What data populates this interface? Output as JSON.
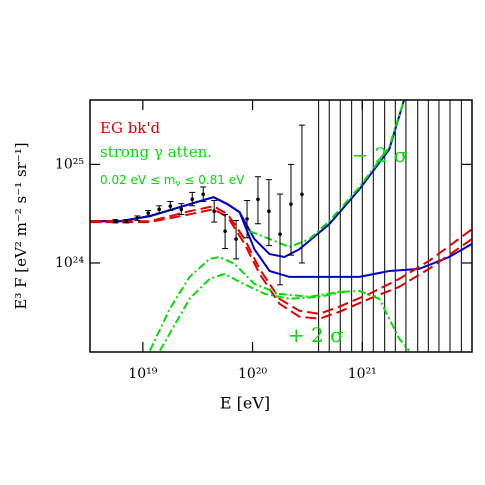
{
  "chart_data": {
    "type": "line",
    "xscale": "log",
    "yscale": "log",
    "xlabel": "E  [eV]",
    "ylabel": "E³ F  [eV² m⁻² s⁻¹ sr⁻¹]",
    "xlim": [
      3.3e+18,
      1e+22
    ],
    "ylim": [
      1.25e+23,
      4.5e+25
    ],
    "xticks": [
      {
        "value": 1e+19,
        "label": "10¹⁹"
      },
      {
        "value": 1e+20,
        "label": "10²⁰"
      },
      {
        "value": 1e+21,
        "label": "10²¹"
      }
    ],
    "yticks": [
      {
        "value": 1e+24,
        "label": "10²⁴"
      },
      {
        "value": 1e+25,
        "label": "10²⁵"
      }
    ],
    "legend": [
      {
        "text": "EG bk'd",
        "color": "#e00000"
      },
      {
        "text": "strong γ atten.",
        "color": "#00dd00"
      }
    ],
    "legend_note": {
      "parts": [
        "0.02 eV ≤ m",
        "ν",
        " ≤ 0.81 eV"
      ],
      "color": "#00dd00"
    },
    "annotations": [
      {
        "text": "− 2 σ",
        "color": "#00dd00",
        "x": 8e+20,
        "y": 1.2e+25
      },
      {
        "text": "+ 2 σ",
        "color": "#00dd00",
        "x": 2.1e+20,
        "y": 1.8e+23
      }
    ],
    "points": {
      "color": "#000000",
      "x": [
        5.62e+18,
        7.08e+18,
        8.91e+18,
        1.12e+19,
        1.41e+19,
        1.78e+19,
        2.24e+19,
        2.82e+19,
        3.55e+19,
        4.47e+19,
        5.62e+19,
        7.08e+19,
        8.91e+19,
        1.12e+20,
        1.41e+20,
        1.78e+20,
        2.24e+20,
        2.82e+20
      ],
      "values": [
        2.65e+24,
        2.65e+24,
        2.85e+24,
        3.2e+24,
        3.5e+24,
        3.77e+24,
        3.5e+24,
        4.43e+24,
        4.98e+24,
        3.35e+24,
        2.1e+24,
        1.75e+24,
        2.8e+24,
        4.43e+24,
        3.35e+24,
        1.96e+24,
        3.95e+24,
        4.98e+24
      ],
      "lower": [
        2.55e+24,
        2.55e+24,
        2.7e+24,
        3e+24,
        3.2e+24,
        3.4e+24,
        3.1e+24,
        3.8e+24,
        4.2e+24,
        2.6e+24,
        1.4e+24,
        1.1e+24,
        1.8e+24,
        2.5e+24,
        1.5e+24,
        6e+23,
        1.2e+24,
        1e+24
      ],
      "upper": [
        2.75e+24,
        2.75e+24,
        3e+24,
        3.4e+24,
        3.8e+24,
        4.2e+24,
        4e+24,
        5.2e+24,
        5.9e+24,
        4.3e+24,
        3.1e+24,
        2.7e+24,
        4.3e+24,
        7.5e+24,
        7e+24,
        5e+24,
        1e+25,
        2.5e+25
      ]
    },
    "upper_limit_x": [
      4e+20,
      5e+20,
      6.3e+20,
      8e+20,
      1e+21,
      1.26e+21,
      1.6e+21,
      2e+21,
      2.5e+21,
      3.2e+21,
      4e+21,
      5e+21,
      6.3e+21,
      8e+21
    ],
    "curves": [
      {
        "color": "#0000cc",
        "dash": "solid",
        "x": [
          3.3e+18,
          6.18e+18,
          1.16e+19,
          2.17e+19,
          3.3e+19,
          4.42e+19,
          5.93e+19,
          7.62e+19,
          1.04e+20,
          1.43e+20,
          1.95e+20,
          2.67e+20,
          5.01e+20,
          9.4e+20,
          1.76e+21,
          2.41e+21
        ],
        "values": [
          2.65e+24,
          2.65e+24,
          2.99e+24,
          3.68e+24,
          4.23e+24,
          4.65e+24,
          3.94e+24,
          3.27e+24,
          1.75e+24,
          1.23e+24,
          1.15e+24,
          1.38e+24,
          2.48e+24,
          5.58e+24,
          1.42e+25,
          4.54e+25
        ]
      },
      {
        "color": "#0000cc",
        "dash": "solid",
        "x": [
          3.3e+18,
          6.18e+18,
          1.16e+19,
          2.17e+19,
          3.3e+19,
          4.42e+19,
          5.93e+19,
          7.62e+19,
          1.04e+20,
          1.43e+20,
          2.17e+20,
          4.06e+20,
          9.4e+20,
          1.76e+21,
          3.3e+21,
          6.18e+21,
          1e+22
        ],
        "values": [
          2.65e+24,
          2.65e+24,
          2.99e+24,
          3.68e+24,
          4.23e+24,
          4.65e+24,
          3.94e+24,
          3.27e+24,
          1.38e+24,
          8.3e+23,
          7.23e+23,
          7.23e+23,
          7.23e+23,
          8.3e+23,
          8.7e+23,
          1.15e+24,
          1.56e+24
        ]
      },
      {
        "color": "#e00000",
        "dash": "dashed",
        "x": [
          3.3e+18,
          1.16e+19,
          2.67e+19,
          4.42e+19,
          5.93e+19,
          8.46e+19,
          1.16e+20,
          1.76e+20,
          2.67e+20,
          4.06e+20,
          6.18e+20,
          1.16e+21,
          2.17e+21,
          4.06e+21,
          1e+22
        ],
        "values": [
          2.65e+24,
          2.65e+24,
          3.35e+24,
          3.77e+24,
          3.12e+24,
          1.75e+24,
          8.7e+23,
          4.33e+23,
          3.27e+23,
          3.05e+23,
          3.6e+23,
          4.86e+23,
          6.89e+23,
          1.05e+24,
          2.2e+24
        ]
      },
      {
        "color": "#e00000",
        "dash": "dashed",
        "x": [
          3.3e+18,
          1.16e+19,
          2.67e+19,
          4.42e+19,
          5.93e+19,
          8.46e+19,
          1.16e+20,
          1.76e+20,
          2.67e+20,
          4.06e+20,
          6.18e+20,
          1.16e+21,
          2.17e+21,
          4.06e+21,
          1e+22
        ],
        "values": [
          2.6e+24,
          2.6e+24,
          3.12e+24,
          3.51e+24,
          2.92e+24,
          1.56e+24,
          7.75e+23,
          3.85e+23,
          2.85e+23,
          2.72e+23,
          3.2e+23,
          4.33e+23,
          5.73e+23,
          8.7e+23,
          1.75e+24
        ]
      },
      {
        "color": "#00dd00",
        "dash": "dashdot",
        "x": [
          1.16e+19,
          1.76e+19,
          2.67e+19,
          4.06e+19,
          5.01e+19,
          6.86e+19,
          1.04e+20,
          1.76e+20,
          3.3e+20,
          6.18e+20,
          9.4e+20,
          1.43e+21,
          2.17e+21,
          2.67e+21
        ],
        "values": [
          1.29e+23,
          3.43e+23,
          7.23e+23,
          1.1e+24,
          1.15e+24,
          9.77e+23,
          6.14e+23,
          4.86e+23,
          4.54e+23,
          5.09e+23,
          5.21e+23,
          4.33e+23,
          1.71e+23,
          1.29e+23
        ]
      },
      {
        "color": "#00dd00",
        "dash": "dashdot",
        "x": [
          1.43e+19,
          2.67e+19,
          4.06e+19,
          5.56e+19,
          7.62e+19,
          1.29e+20,
          2.17e+20,
          4.06e+20,
          6.86e+20
        ],
        "values": [
          1.29e+23,
          4.33e+23,
          6.89e+23,
          7.75e+23,
          6.43e+23,
          4.86e+23,
          4.33e+23,
          4.54e+23,
          5.09e+23
        ]
      },
      {
        "color": "#00dd00",
        "dash": "dashdot",
        "x": [
          9.4e+19,
          1.43e+20,
          2.17e+20,
          3.3e+20,
          5.01e+20,
          9.4e+20,
          1.76e+21,
          2.41e+21
        ],
        "values": [
          2.1e+24,
          1.75e+24,
          1.45e+24,
          1.75e+24,
          2.65e+24,
          5.86e+24,
          1.49e+25,
          4.54e+25
        ]
      }
    ]
  }
}
